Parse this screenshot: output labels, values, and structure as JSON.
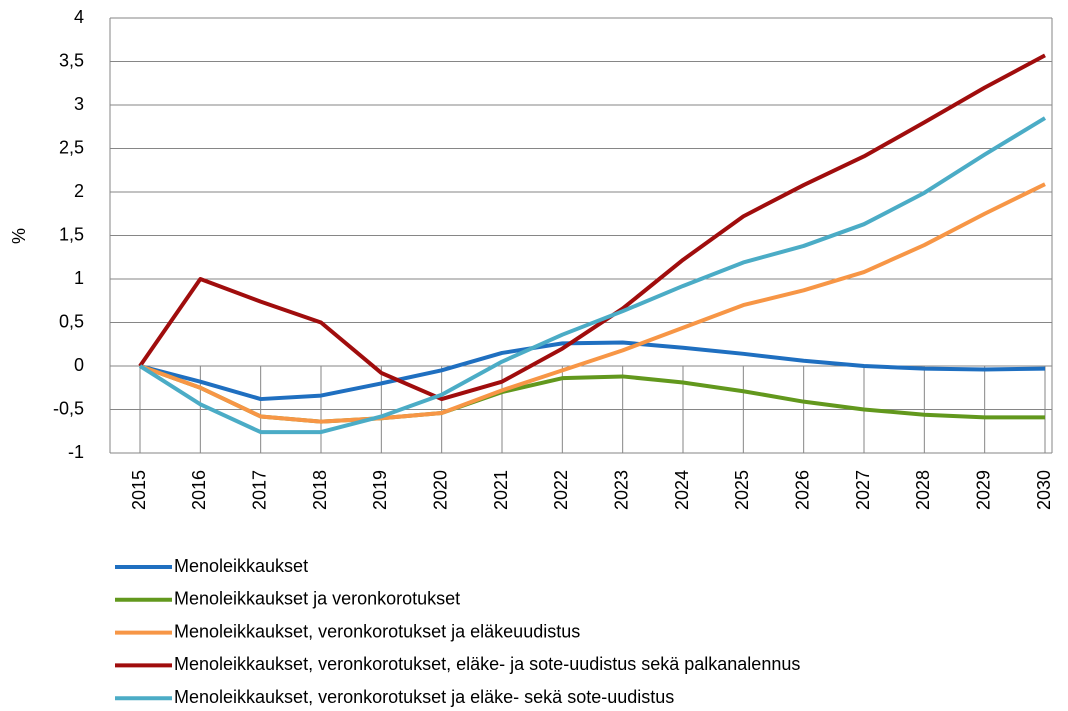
{
  "chart_data": {
    "type": "line",
    "y_label": "%",
    "categories": [
      "2015",
      "2016",
      "2017",
      "2018",
      "2019",
      "2020",
      "2021",
      "2022",
      "2023",
      "2024",
      "2025",
      "2026",
      "2027",
      "2028",
      "2029",
      "2030"
    ],
    "ylim": [
      -1,
      4
    ],
    "yticks": [
      -1,
      {
        "value": -0.5,
        "label": "-0,5"
      },
      0,
      {
        "value": 0.5,
        "label": "0,5"
      },
      1,
      {
        "value": 1.5,
        "label": "1,5"
      },
      2,
      {
        "value": 2.5,
        "label": "2,5"
      },
      3,
      {
        "value": 3.5,
        "label": "3,5"
      },
      4
    ],
    "grid": true,
    "legend": "bottom",
    "series": [
      {
        "name": "Menoleikkaukset",
        "color": "#1f6fc0",
        "values": [
          0,
          -0.18,
          -0.38,
          -0.34,
          -0.2,
          -0.05,
          0.15,
          0.26,
          0.27,
          0.21,
          0.14,
          0.06,
          0.0,
          -0.03,
          -0.04,
          -0.03
        ]
      },
      {
        "name": "Menoleikkaukset ja veronkorotukset",
        "color": "#62981d",
        "values": [
          0,
          -0.25,
          -0.58,
          -0.64,
          -0.6,
          -0.54,
          -0.3,
          -0.14,
          -0.12,
          -0.19,
          -0.29,
          -0.41,
          -0.5,
          -0.56,
          -0.59,
          -0.59
        ]
      },
      {
        "name": "Menoleikkaukset, veronkorotukset ja eläkeuudistus",
        "color": "#f79646",
        "values": [
          0,
          -0.25,
          -0.58,
          -0.64,
          -0.6,
          -0.54,
          -0.28,
          -0.05,
          0.18,
          0.44,
          0.7,
          0.87,
          1.08,
          1.39,
          1.75,
          2.09
        ]
      },
      {
        "name": "Menoleikkaukset, veronkorotukset, eläke- ja sote-uudistus sekä palkanalennus",
        "color": "#a00d0d",
        "values": [
          0,
          1.0,
          0.74,
          0.5,
          -0.08,
          -0.38,
          -0.18,
          0.2,
          0.66,
          1.22,
          1.72,
          2.08,
          2.41,
          2.8,
          3.2,
          3.57
        ]
      },
      {
        "name": "Menoleikkaukset, veronkorotukset ja eläke- sekä sote-uudistus",
        "color": "#4bacc6",
        "values": [
          0,
          -0.44,
          -0.76,
          -0.76,
          -0.58,
          -0.33,
          0.05,
          0.36,
          0.63,
          0.92,
          1.19,
          1.38,
          1.63,
          1.99,
          2.43,
          2.85
        ]
      }
    ]
  }
}
